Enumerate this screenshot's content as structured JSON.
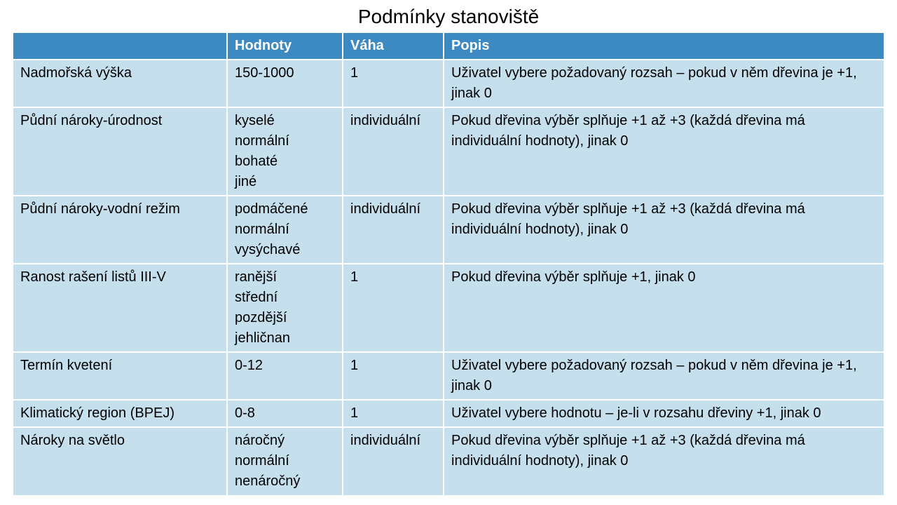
{
  "title": "Podmínky stanoviště",
  "columns": [
    "",
    "Hodnoty",
    "Váha",
    "Popis"
  ],
  "rows": [
    {
      "name": "Nadmořská výška",
      "values": [
        "150-1000"
      ],
      "weight": "1",
      "desc": "Uživatel vybere požadovaný rozsah – pokud v něm dřevina je +1, jinak 0"
    },
    {
      "name": "Půdní nároky-úrodnost",
      "values": [
        "kyselé",
        "normální",
        "bohaté",
        "jiné"
      ],
      "weight": "individuální",
      "desc": "Pokud dřevina výběr splňuje +1 až +3 (každá dřevina má individuální hodnoty), jinak 0"
    },
    {
      "name": "Půdní nároky-vodní režim",
      "values": [
        "podmáčené",
        "normální",
        "vysýchavé"
      ],
      "weight": "individuální",
      "desc": "Pokud dřevina výběr splňuje +1 až +3 (každá dřevina má individuální hodnoty), jinak 0"
    },
    {
      "name": "Ranost rašení listů III-V",
      "values": [
        "ranější",
        "střední",
        "pozdější",
        "jehličnan"
      ],
      "weight": "1",
      "desc": "Pokud dřevina výběr splňuje +1, jinak 0"
    },
    {
      "name": "Termín kvetení",
      "values": [
        "0-12"
      ],
      "weight": "1",
      "desc": "Uživatel vybere požadovaný rozsah – pokud v něm dřevina je +1, jinak 0"
    },
    {
      "name": "Klimatický region (BPEJ)",
      "values": [
        "0-8"
      ],
      "weight": "1",
      "desc": "Uživatel vybere hodnotu – je-li v rozsahu dřeviny +1, jinak 0"
    },
    {
      "name": "Nároky na světlo",
      "values": [
        "náročný",
        "normální",
        "nenáročný"
      ],
      "weight": "individuální",
      "desc": "Pokud dřevina výběr splňuje +1 až +3 (každá dřevina má individuální hodnoty), jinak 0"
    }
  ]
}
